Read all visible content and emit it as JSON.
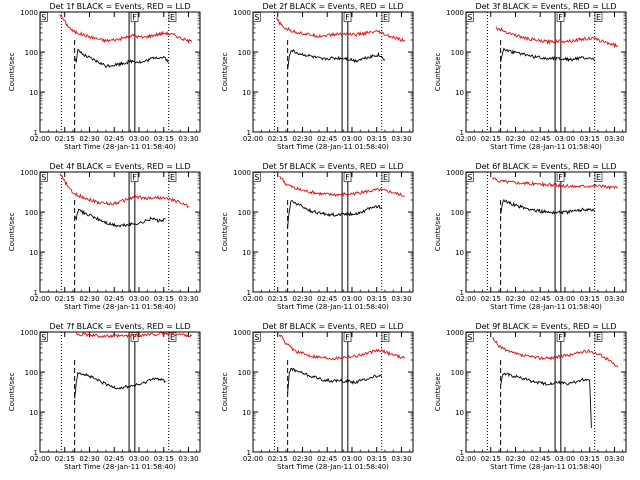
{
  "chart_data": {
    "type": "line",
    "layout": "grid-3x3",
    "scale": "log",
    "ylim": [
      1,
      1000
    ],
    "ylabel": "Counts/sec",
    "xlabel": "Start Time (28-Jan-11 01:58:40)",
    "x_ticks": [
      "02:00",
      "02:15",
      "02:30",
      "02:45",
      "03:00",
      "03:15",
      "03:30"
    ],
    "x_tick_minutes": [
      0,
      15,
      30,
      45,
      60,
      75,
      90
    ],
    "xlim_minutes": [
      0,
      97
    ],
    "y_ticks": [
      {
        "value": 1,
        "label": "1"
      },
      {
        "value": 10,
        "label": "10"
      },
      {
        "value": 100,
        "label": "100"
      },
      {
        "value": 1000,
        "label": "1000"
      }
    ],
    "marker_labels": {
      "start": "S",
      "flare": "F",
      "end": "E"
    },
    "markers_minutes": {
      "start": 0.5,
      "flare": 55.5,
      "end": 78.5
    },
    "dotted_lines_minutes": [
      13,
      78
    ],
    "dashed_line_minute": 21,
    "flare_box_minutes": [
      54,
      57.5
    ],
    "series_legend": {
      "events": "BLACK",
      "lld": "RED"
    },
    "panels": [
      {
        "title": "Det 1f BLACK = Events, RED = LLD",
        "red": [
          [
            12,
            900
          ],
          [
            16,
            500
          ],
          [
            20,
            330
          ],
          [
            30,
            240
          ],
          [
            40,
            190
          ],
          [
            48,
            210
          ],
          [
            56,
            260
          ],
          [
            62,
            230
          ],
          [
            70,
            270
          ],
          [
            76,
            300
          ],
          [
            82,
            260
          ],
          [
            88,
            200
          ],
          [
            92,
            180
          ]
        ],
        "black": [
          [
            21,
            80
          ],
          [
            22,
            55
          ],
          [
            23,
            110
          ],
          [
            26,
            85
          ],
          [
            32,
            65
          ],
          [
            40,
            45
          ],
          [
            48,
            50
          ],
          [
            56,
            60
          ],
          [
            62,
            55
          ],
          [
            70,
            75
          ],
          [
            76,
            70
          ],
          [
            78,
            55
          ]
        ]
      },
      {
        "title": "Det 2f BLACK = Events, RED = LLD",
        "red": [
          [
            14,
            700
          ],
          [
            18,
            420
          ],
          [
            24,
            330
          ],
          [
            32,
            280
          ],
          [
            40,
            250
          ],
          [
            48,
            270
          ],
          [
            56,
            290
          ],
          [
            62,
            270
          ],
          [
            70,
            300
          ],
          [
            76,
            320
          ],
          [
            82,
            250
          ],
          [
            88,
            210
          ],
          [
            92,
            190
          ]
        ],
        "black": [
          [
            21,
            35
          ],
          [
            22,
            80
          ],
          [
            23,
            110
          ],
          [
            28,
            90
          ],
          [
            34,
            80
          ],
          [
            42,
            65
          ],
          [
            48,
            70
          ],
          [
            56,
            70
          ],
          [
            62,
            60
          ],
          [
            70,
            75
          ],
          [
            76,
            85
          ],
          [
            80,
            65
          ]
        ]
      },
      {
        "title": "Det 3f BLACK = Events, RED = LLD",
        "red": [
          [
            18,
            400
          ],
          [
            22,
            350
          ],
          [
            28,
            280
          ],
          [
            36,
            220
          ],
          [
            44,
            190
          ],
          [
            50,
            180
          ],
          [
            56,
            190
          ],
          [
            64,
            190
          ],
          [
            70,
            210
          ],
          [
            76,
            220
          ],
          [
            82,
            190
          ],
          [
            88,
            160
          ],
          [
            92,
            140
          ]
        ],
        "black": [
          [
            21,
            60
          ],
          [
            22,
            90
          ],
          [
            23,
            120
          ],
          [
            28,
            100
          ],
          [
            34,
            90
          ],
          [
            42,
            75
          ],
          [
            48,
            70
          ],
          [
            56,
            70
          ],
          [
            62,
            65
          ],
          [
            70,
            70
          ],
          [
            76,
            70
          ],
          [
            78,
            60
          ]
        ]
      },
      {
        "title": "Det 4f BLACK = Events, RED = LLD",
        "red": [
          [
            12,
            900
          ],
          [
            16,
            500
          ],
          [
            20,
            290
          ],
          [
            28,
            220
          ],
          [
            36,
            170
          ],
          [
            44,
            160
          ],
          [
            52,
            200
          ],
          [
            58,
            240
          ],
          [
            64,
            220
          ],
          [
            72,
            230
          ],
          [
            78,
            210
          ],
          [
            84,
            180
          ],
          [
            90,
            140
          ]
        ],
        "black": [
          [
            21,
            80
          ],
          [
            22,
            60
          ],
          [
            23,
            110
          ],
          [
            28,
            90
          ],
          [
            34,
            70
          ],
          [
            42,
            50
          ],
          [
            48,
            45
          ],
          [
            56,
            50
          ],
          [
            62,
            55
          ],
          [
            68,
            70
          ],
          [
            72,
            60
          ],
          [
            76,
            65
          ]
        ]
      },
      {
        "title": "Det 5f BLACK = Events, RED = LLD",
        "red": [
          [
            16,
            800
          ],
          [
            20,
            500
          ],
          [
            26,
            380
          ],
          [
            34,
            320
          ],
          [
            42,
            280
          ],
          [
            50,
            270
          ],
          [
            56,
            280
          ],
          [
            62,
            290
          ],
          [
            70,
            330
          ],
          [
            76,
            360
          ],
          [
            82,
            330
          ],
          [
            88,
            280
          ],
          [
            92,
            250
          ]
        ],
        "black": [
          [
            21,
            45
          ],
          [
            22,
            100
          ],
          [
            23,
            190
          ],
          [
            28,
            150
          ],
          [
            34,
            110
          ],
          [
            42,
            90
          ],
          [
            48,
            85
          ],
          [
            56,
            90
          ],
          [
            62,
            90
          ],
          [
            68,
            110
          ],
          [
            74,
            140
          ],
          [
            78,
            130
          ]
        ]
      },
      {
        "title": "Det 6f BLACK = Events, RED = LLD",
        "red": [
          [
            16,
            700
          ],
          [
            20,
            600
          ],
          [
            28,
            560
          ],
          [
            36,
            520
          ],
          [
            44,
            500
          ],
          [
            52,
            470
          ],
          [
            58,
            450
          ],
          [
            64,
            440
          ],
          [
            72,
            450
          ],
          [
            80,
            460
          ],
          [
            86,
            420
          ],
          [
            92,
            400
          ]
        ],
        "black": [
          [
            21,
            90
          ],
          [
            22,
            160
          ],
          [
            23,
            190
          ],
          [
            28,
            160
          ],
          [
            34,
            130
          ],
          [
            42,
            110
          ],
          [
            48,
            100
          ],
          [
            56,
            100
          ],
          [
            62,
            100
          ],
          [
            68,
            110
          ],
          [
            74,
            120
          ],
          [
            78,
            110
          ]
        ]
      },
      {
        "title": "Det 7f BLACK = Events, RED = LLD",
        "red": [
          [
            22,
            900
          ],
          [
            28,
            850
          ],
          [
            36,
            800
          ],
          [
            44,
            780
          ],
          [
            52,
            800
          ],
          [
            58,
            820
          ],
          [
            66,
            850
          ],
          [
            74,
            900
          ],
          [
            82,
            880
          ],
          [
            88,
            850
          ],
          [
            92,
            800
          ]
        ],
        "black": [
          [
            21,
            20
          ],
          [
            22,
            60
          ],
          [
            23,
            100
          ],
          [
            28,
            85
          ],
          [
            34,
            65
          ],
          [
            42,
            45
          ],
          [
            48,
            40
          ],
          [
            56,
            45
          ],
          [
            62,
            50
          ],
          [
            68,
            70
          ],
          [
            72,
            65
          ],
          [
            76,
            60
          ]
        ]
      },
      {
        "title": "Det 8f BLACK = Events, RED = LLD",
        "red": [
          [
            16,
            900
          ],
          [
            20,
            500
          ],
          [
            26,
            330
          ],
          [
            34,
            260
          ],
          [
            42,
            230
          ],
          [
            50,
            220
          ],
          [
            56,
            240
          ],
          [
            62,
            250
          ],
          [
            70,
            300
          ],
          [
            76,
            350
          ],
          [
            82,
            300
          ],
          [
            88,
            250
          ],
          [
            92,
            220
          ]
        ],
        "black": [
          [
            21,
            30
          ],
          [
            22,
            90
          ],
          [
            23,
            120
          ],
          [
            28,
            100
          ],
          [
            34,
            80
          ],
          [
            42,
            65
          ],
          [
            48,
            60
          ],
          [
            56,
            60
          ],
          [
            62,
            55
          ],
          [
            68,
            65
          ],
          [
            74,
            80
          ],
          [
            78,
            75
          ]
        ]
      },
      {
        "title": "Det 9f BLACK = Events, RED = LLD",
        "red": [
          [
            16,
            700
          ],
          [
            20,
            450
          ],
          [
            26,
            320
          ],
          [
            34,
            260
          ],
          [
            42,
            230
          ],
          [
            50,
            220
          ],
          [
            56,
            240
          ],
          [
            62,
            260
          ],
          [
            70,
            320
          ],
          [
            76,
            330
          ],
          [
            82,
            260
          ],
          [
            88,
            180
          ],
          [
            92,
            130
          ]
        ],
        "black": [
          [
            21,
            45
          ],
          [
            22,
            75
          ],
          [
            23,
            95
          ],
          [
            28,
            80
          ],
          [
            34,
            70
          ],
          [
            42,
            55
          ],
          [
            48,
            50
          ],
          [
            56,
            55
          ],
          [
            62,
            50
          ],
          [
            68,
            60
          ],
          [
            72,
            65
          ],
          [
            75,
            60
          ],
          [
            76,
            4
          ]
        ]
      }
    ]
  }
}
